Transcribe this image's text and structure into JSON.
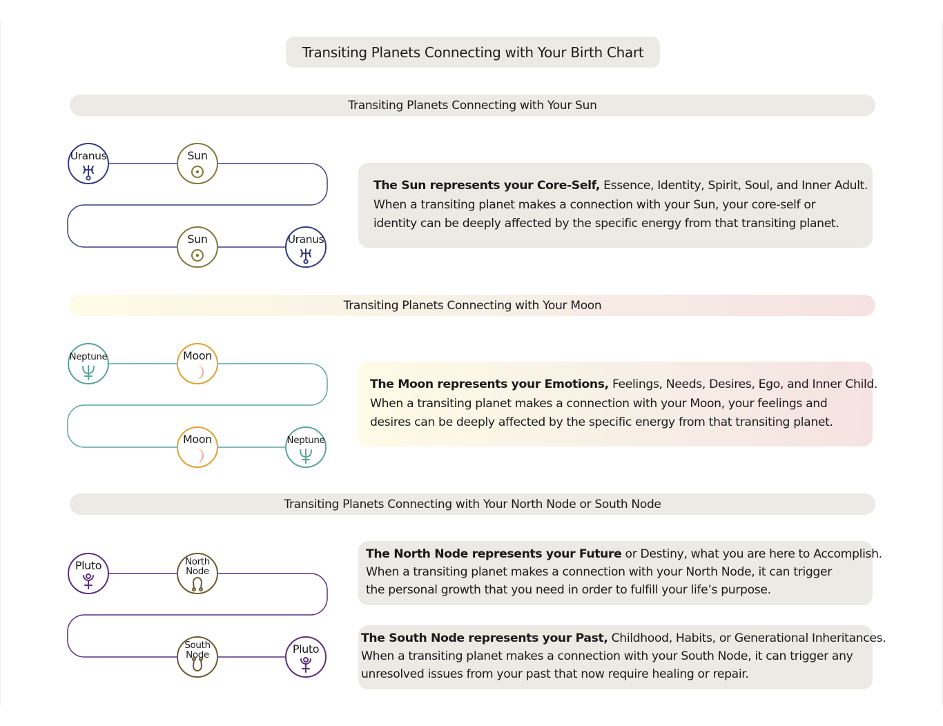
{
  "title": "Transiting Planets Connecting with Your Birth Chart",
  "sections": [
    {
      "id": "sun",
      "band": "Transiting Planets Connecting with Your Sun",
      "color": "#3a3f7c",
      "theme": "neutral",
      "nodes": [
        {
          "label": [
            "Uranus"
          ],
          "glyph": "uranus-icon",
          "color": "#353a82"
        },
        {
          "label": [
            "Sun"
          ],
          "glyph": "sun-icon",
          "color": "#7a7a3a"
        },
        {
          "label": [
            "Sun"
          ],
          "glyph": "sun-icon",
          "color": "#7a7a3a"
        },
        {
          "label": [
            "Uranus"
          ],
          "glyph": "uranus-icon",
          "color": "#353a82"
        }
      ],
      "descriptions": [
        {
          "bold": "The Sun represents your Core-Self,",
          "lines": [
            " Essence, Identity, Spirit, Soul, and Inner Adult.",
            "When a transiting planet makes a connection with your Sun, your core-self or",
            "identity can be deeply affected by the specific energy from that transiting planet."
          ]
        }
      ]
    },
    {
      "id": "moon",
      "band": "Transiting Planets Connecting with Your Moon",
      "color": "#5aa597",
      "theme": "moon",
      "nodes": [
        {
          "label": [
            "Neptune"
          ],
          "glyph": "neptune-icon",
          "color": "#5aa597"
        },
        {
          "label": [
            "Moon"
          ],
          "glyph": "moon-icon",
          "color": "#e0a030"
        },
        {
          "label": [
            "Moon"
          ],
          "glyph": "moon-icon",
          "color": "#e0a030"
        },
        {
          "label": [
            "Neptune"
          ],
          "glyph": "neptune-icon",
          "color": "#5aa597"
        }
      ],
      "descriptions": [
        {
          "bold": "The Moon represents your Emotions,",
          "lines": [
            " Feelings, Needs, Desires, Ego, and Inner Child.",
            "When a transiting planet makes a connection with your Moon, your feelings and",
            "desires can be deeply affected by the specific energy from that transiting planet."
          ]
        }
      ]
    },
    {
      "id": "nodes",
      "band": "Transiting Planets Connecting with Your North Node or South Node",
      "color": "#5b2e7e",
      "theme": "neutral",
      "nodes": [
        {
          "label": [
            "Pluto"
          ],
          "glyph": "pluto-icon",
          "color": "#5b2e7e"
        },
        {
          "label": [
            "North",
            "Node"
          ],
          "glyph": "north-node-icon",
          "color": "#6b5a2e"
        },
        {
          "label": [
            "South",
            "Node"
          ],
          "glyph": "south-node-icon",
          "color": "#6b5a2e"
        },
        {
          "label": [
            "Pluto"
          ],
          "glyph": "pluto-icon",
          "color": "#5b2e7e"
        }
      ],
      "descriptions": [
        {
          "bold": "The North Node represents your Future",
          "lines": [
            " or Destiny, what you are here to Accomplish.",
            "When a transiting planet makes a connection with your North Node, it can trigger",
            "the personal growth that you need in order to fulfill your life’s purpose."
          ]
        },
        {
          "bold": "The South Node represents your Past,",
          "lines": [
            " Childhood, Habits, or Generational Inheritances.",
            "When a transiting planet makes a connection with your South Node, it can trigger any",
            "unresolved issues from your past that now require healing or repair."
          ]
        }
      ]
    }
  ]
}
